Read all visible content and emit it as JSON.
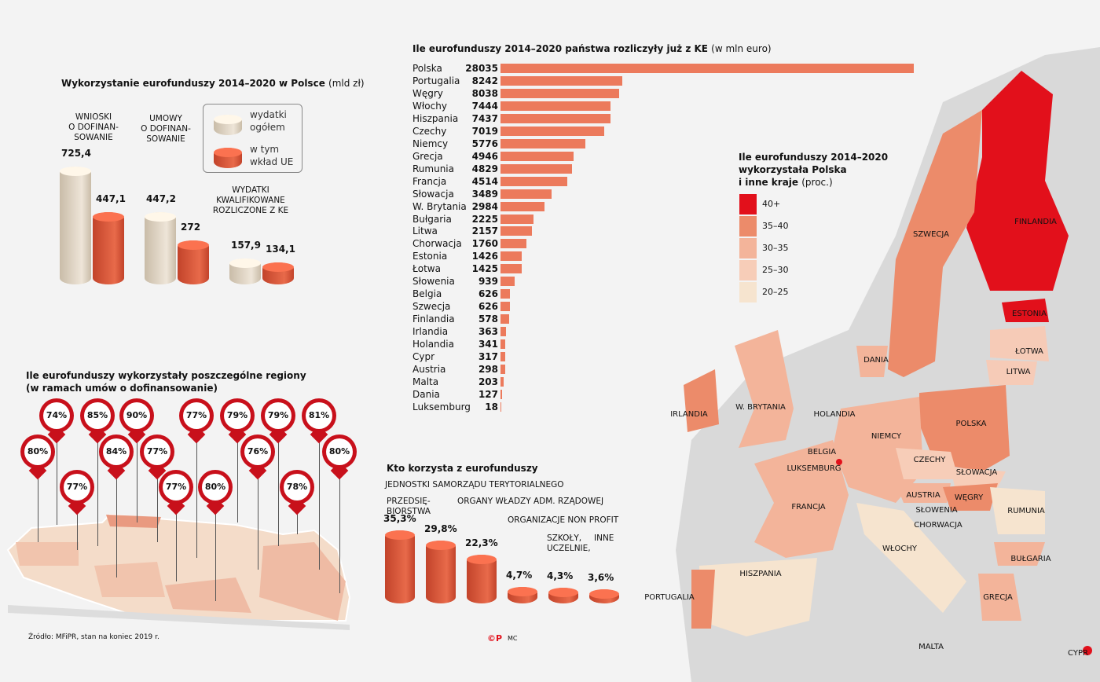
{
  "poland_usage": {
    "title": "Wykorzystanie eurofunduszy 2014–2020 w Polsce",
    "unit": "(mld zł)",
    "legend": [
      {
        "label_1": "wydatki",
        "label_2": "ogółem",
        "color": "#e3d8c8"
      },
      {
        "label_1": "w tym",
        "label_2": "wkład UE",
        "color": "#e0603f"
      }
    ],
    "groups": [
      {
        "label": [
          "WNIOSKI",
          "O DOFINAN-",
          "SOWANIE"
        ],
        "total": "725,4",
        "eu": "447,1",
        "total_v": 725.4,
        "eu_v": 447.1
      },
      {
        "label": [
          "UMOWY",
          "O DOFINAN-",
          "SOWANIE"
        ],
        "total": "447,2",
        "eu": "272",
        "total_v": 447.2,
        "eu_v": 272
      },
      {
        "label": [
          "WYDATKI",
          "KWALIFIKOWANE",
          "ROZLICZONE Z KE"
        ],
        "total": "157,9",
        "eu": "134,1",
        "total_v": 157.9,
        "eu_v": 134.1
      }
    ]
  },
  "chart_data": [
    {
      "type": "bar",
      "orientation": "horizontal",
      "title": "Ile eurofunduszy 2014–2020 państwa rozliczyły już z KE",
      "unit": "(w mln euro)",
      "color": "#ec7a5c",
      "categories": [
        "Polska",
        "Portugalia",
        "Węgry",
        "Włochy",
        "Hiszpania",
        "Czechy",
        "Niemcy",
        "Grecja",
        "Rumunia",
        "Francja",
        "Słowacja",
        "W. Brytania",
        "Bułgaria",
        "Litwa",
        "Chorwacja",
        "Estonia",
        "Łotwa",
        "Słowenia",
        "Belgia",
        "Szwecja",
        "Finlandia",
        "Irlandia",
        "Holandia",
        "Cypr",
        "Austria",
        "Malta",
        "Dania",
        "Luksemburg"
      ],
      "values": [
        28035,
        8242,
        8038,
        7444,
        7437,
        7019,
        5776,
        4946,
        4829,
        4514,
        3489,
        2984,
        2225,
        2157,
        1760,
        1426,
        1425,
        939,
        626,
        626,
        578,
        363,
        341,
        317,
        298,
        203,
        127,
        18
      ]
    },
    {
      "type": "bar",
      "title": "Kto korzysta z eurofunduszy",
      "color": "#e0603f",
      "categories": [
        "PRZEDSIĘ-BIORSTWA",
        "JEDNOSTKI SAMORZĄDU TERYTORIALNEGO",
        "ORGANY WŁADZY ADM. RZĄDOWEJ",
        "ORGANIZACJE NON PROFIT",
        "SZKOŁY, UCZELNIE,",
        "INNE"
      ],
      "labels": [
        "35,3%",
        "29,8%",
        "22,3%",
        "4,7%",
        "4,3%",
        "3,6%"
      ],
      "values": [
        35.3,
        29.8,
        22.3,
        4.7,
        4.3,
        3.6
      ]
    }
  ],
  "regions": {
    "title_1": "Ile eurofunduszy wykorzystały poszczególne regiony",
    "title_2": "(w ramach umów o dofinansowanie)",
    "values": [
      "80%",
      "74%",
      "77%",
      "85%",
      "84%",
      "90%",
      "77%",
      "77%",
      "77%",
      "80%",
      "79%",
      "76%",
      "79%",
      "78%",
      "81%",
      "80%"
    ]
  },
  "map": {
    "title_1": "Ile eurofunduszy 2014–2020",
    "title_2": "wykorzystała Polska",
    "title_3": "i inne kraje",
    "unit": "(proc.)",
    "legend": [
      {
        "label": "40+",
        "color": "#e2101b"
      },
      {
        "label": "35–40",
        "color": "#ec8b6a"
      },
      {
        "label": "30–35",
        "color": "#f3b49a"
      },
      {
        "label": "25–30",
        "color": "#f7cdb8"
      },
      {
        "label": "20–25",
        "color": "#f6e4cf"
      }
    ],
    "countries": [
      "FINLANDIA",
      "SZWECJA",
      "ESTONIA",
      "ŁOTWA",
      "LITWA",
      "DANIA",
      "IRLANDIA",
      "W. BRYTANIA",
      "HOLANDIA",
      "NIEMCY",
      "POLSKA",
      "BELGIA",
      "LUKSEMBURG",
      "CZECHY",
      "SŁOWACJA",
      "AUSTRIA",
      "WĘGRY",
      "FRANCJA",
      "SŁOWENIA",
      "CHORWACJA",
      "RUMUNIA",
      "WŁOCHY",
      "BUŁGARIA",
      "HISZPANIA",
      "PORTUGALIA",
      "GRECJA",
      "MALTA",
      "CYPR"
    ]
  },
  "footer": {
    "source": "Źródło: MFiPR, stan na koniec 2019 r.",
    "logo": "©P",
    "author": "MC"
  }
}
